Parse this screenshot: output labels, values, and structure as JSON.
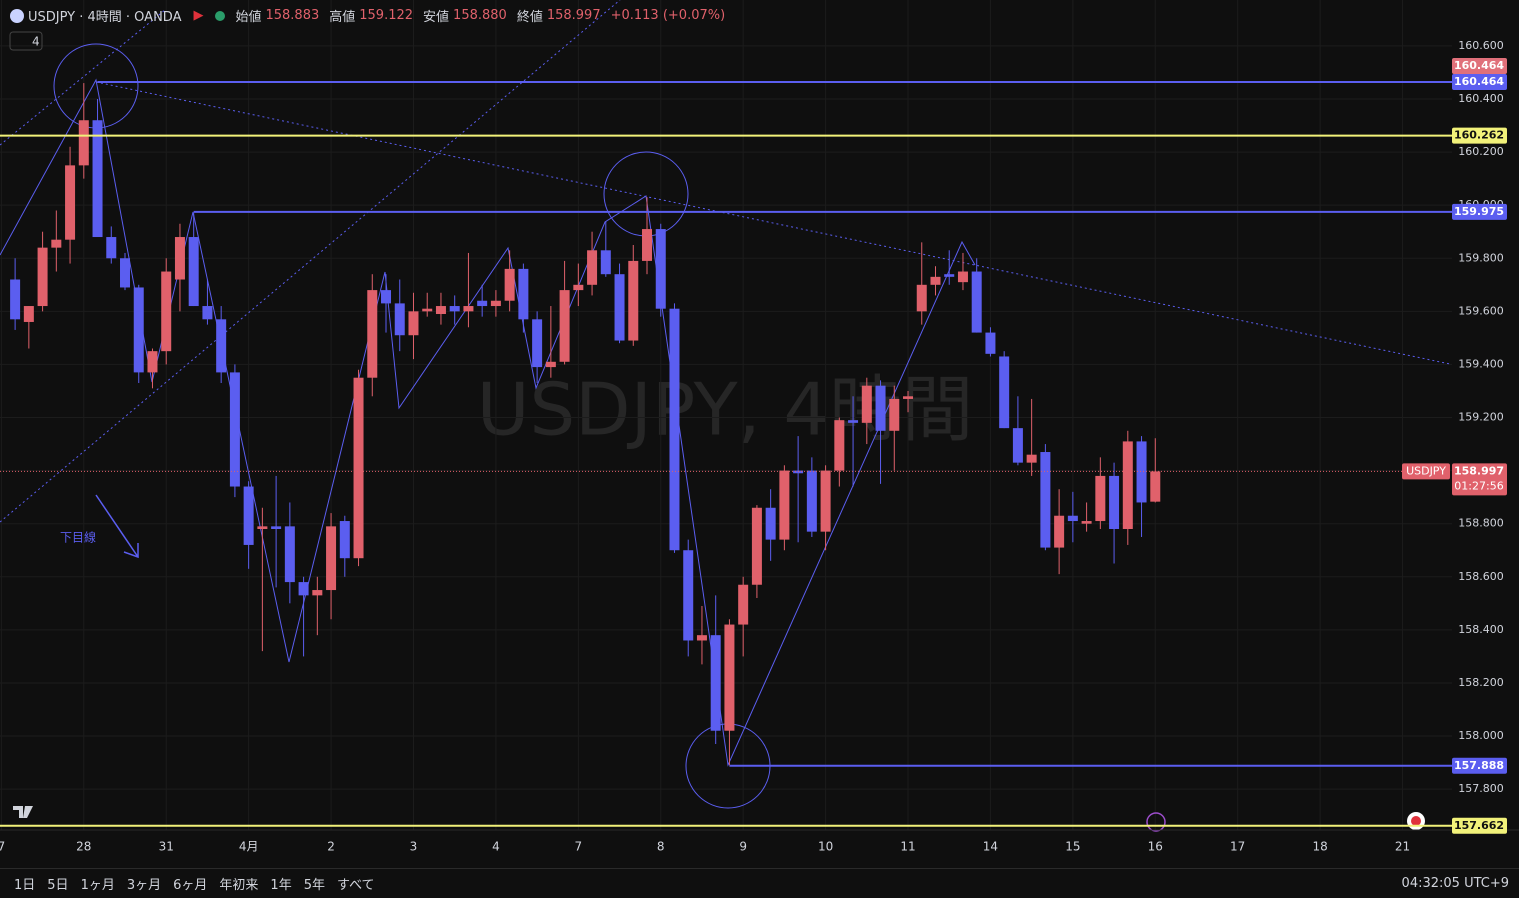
{
  "header": {
    "symbol": "USDJPY · 4時間 · OANDA",
    "open_label": "始値",
    "open": "158.883",
    "high_label": "高値",
    "high": "159.122",
    "low_label": "安値",
    "low": "158.880",
    "close_label": "終値",
    "close": "158.997",
    "change": "+0.113 (+0.07%)",
    "indicator_count": "4"
  },
  "toolbar": {
    "ranges": [
      "1日",
      "5日",
      "1ヶ月",
      "3ヶ月",
      "6ヶ月",
      "年初来",
      "1年",
      "5年",
      "すべて"
    ],
    "clock": "04:32:05 UTC+9"
  },
  "chart_data": {
    "type": "candlestick",
    "title": "USDJPY, 4時間",
    "annotation": "下目線",
    "up_color": "#e0616b",
    "down_color": "#5b5ef0",
    "candles": [
      [
        159.72,
        159.8,
        159.53,
        159.57
      ],
      [
        159.56,
        159.62,
        159.46,
        159.62
      ],
      [
        159.62,
        159.9,
        159.6,
        159.84
      ],
      [
        159.84,
        159.98,
        159.75,
        159.87
      ],
      [
        159.87,
        160.22,
        159.78,
        160.15
      ],
      [
        160.15,
        160.46,
        160.1,
        160.32
      ],
      [
        160.32,
        160.4,
        159.88,
        159.88
      ],
      [
        159.88,
        159.92,
        159.78,
        159.8
      ],
      [
        159.8,
        159.82,
        159.68,
        159.69
      ],
      [
        159.69,
        159.7,
        159.33,
        159.37
      ],
      [
        159.37,
        159.46,
        159.31,
        159.45
      ],
      [
        159.45,
        159.8,
        159.4,
        159.75
      ],
      [
        159.72,
        159.93,
        159.6,
        159.88
      ],
      [
        159.88,
        159.97,
        159.62,
        159.62
      ],
      [
        159.62,
        159.72,
        159.55,
        159.57
      ],
      [
        159.57,
        159.62,
        159.33,
        159.37
      ],
      [
        159.37,
        159.4,
        158.9,
        158.94
      ],
      [
        158.94,
        158.96,
        158.63,
        158.72
      ],
      [
        158.78,
        158.86,
        158.32,
        158.79
      ],
      [
        158.79,
        158.98,
        158.56,
        158.78
      ],
      [
        158.79,
        158.88,
        158.5,
        158.58
      ],
      [
        158.58,
        158.6,
        158.3,
        158.53
      ],
      [
        158.53,
        158.6,
        158.38,
        158.55
      ],
      [
        158.55,
        158.84,
        158.44,
        158.79
      ],
      [
        158.81,
        158.83,
        158.6,
        158.67
      ],
      [
        158.67,
        159.38,
        158.64,
        159.35
      ],
      [
        159.35,
        159.74,
        159.28,
        159.68
      ],
      [
        159.68,
        159.74,
        159.52,
        159.63
      ],
      [
        159.63,
        159.72,
        159.45,
        159.51
      ],
      [
        159.51,
        159.67,
        159.42,
        159.6
      ],
      [
        159.6,
        159.67,
        159.58,
        159.61
      ],
      [
        159.59,
        159.67,
        159.55,
        159.62
      ],
      [
        159.62,
        159.66,
        159.55,
        159.6
      ],
      [
        159.6,
        159.82,
        159.54,
        159.62
      ],
      [
        159.64,
        159.7,
        159.58,
        159.62
      ],
      [
        159.62,
        159.68,
        159.58,
        159.64
      ],
      [
        159.64,
        159.83,
        159.6,
        159.76
      ],
      [
        159.76,
        159.78,
        159.52,
        159.57
      ],
      [
        159.57,
        159.6,
        159.33,
        159.39
      ],
      [
        159.39,
        159.62,
        159.35,
        159.41
      ],
      [
        159.41,
        159.79,
        159.4,
        159.68
      ],
      [
        159.68,
        159.78,
        159.62,
        159.7
      ],
      [
        159.7,
        159.9,
        159.66,
        159.83
      ],
      [
        159.83,
        159.94,
        159.73,
        159.74
      ],
      [
        159.74,
        159.78,
        159.48,
        159.49
      ],
      [
        159.49,
        159.85,
        159.47,
        159.79
      ],
      [
        159.79,
        160.03,
        159.74,
        159.91
      ],
      [
        159.91,
        159.93,
        159.58,
        159.61
      ],
      [
        159.61,
        159.63,
        158.69,
        158.7
      ],
      [
        158.7,
        158.74,
        158.3,
        158.36
      ],
      [
        158.36,
        158.49,
        158.27,
        158.38
      ],
      [
        158.38,
        158.53,
        157.97,
        158.02
      ],
      [
        158.02,
        158.44,
        157.89,
        158.42
      ],
      [
        158.42,
        158.6,
        158.3,
        158.57
      ],
      [
        158.57,
        158.87,
        158.52,
        158.86
      ],
      [
        158.86,
        158.93,
        158.66,
        158.74
      ],
      [
        158.74,
        159.02,
        158.7,
        159.0
      ],
      [
        159.0,
        159.13,
        158.73,
        158.99
      ],
      [
        159.0,
        159.05,
        158.75,
        158.77
      ],
      [
        158.77,
        159.02,
        158.7,
        159.0
      ],
      [
        159.0,
        159.2,
        158.94,
        159.19
      ],
      [
        159.19,
        159.28,
        158.94,
        159.18
      ],
      [
        159.18,
        159.35,
        159.1,
        159.32
      ],
      [
        159.32,
        159.34,
        158.95,
        159.15
      ],
      [
        159.15,
        159.32,
        159.0,
        159.27
      ],
      [
        159.27,
        159.3,
        159.22,
        159.28
      ],
      [
        159.6,
        159.86,
        159.55,
        159.7
      ],
      [
        159.7,
        159.77,
        159.66,
        159.73
      ],
      [
        159.74,
        159.83,
        159.7,
        159.73
      ],
      [
        159.71,
        159.82,
        159.68,
        159.75
      ],
      [
        159.75,
        159.8,
        159.52,
        159.52
      ],
      [
        159.52,
        159.54,
        159.43,
        159.44
      ],
      [
        159.43,
        159.45,
        159.16,
        159.16
      ],
      [
        159.16,
        159.28,
        159.02,
        159.03
      ],
      [
        159.03,
        159.27,
        158.98,
        159.06
      ],
      [
        159.07,
        159.1,
        158.7,
        158.71
      ],
      [
        158.71,
        158.93,
        158.61,
        158.83
      ],
      [
        158.83,
        158.92,
        158.73,
        158.81
      ],
      [
        158.8,
        158.88,
        158.77,
        158.81
      ],
      [
        158.81,
        159.05,
        158.78,
        158.98
      ],
      [
        158.98,
        159.03,
        158.65,
        158.78
      ],
      [
        158.78,
        159.15,
        158.72,
        159.11
      ],
      [
        159.11,
        159.13,
        158.75,
        158.88
      ],
      [
        158.883,
        159.122,
        158.88,
        158.997
      ]
    ],
    "xlim": [
      -1.1,
      104.6
    ],
    "xticks": [
      {
        "value": -1,
        "label": "7"
      },
      {
        "value": 5,
        "label": "28"
      },
      {
        "value": 11,
        "label": "31"
      },
      {
        "value": 17,
        "label": "4月"
      },
      {
        "value": 23,
        "label": "2"
      },
      {
        "value": 29,
        "label": "3"
      },
      {
        "value": 35,
        "label": "4"
      },
      {
        "value": 41,
        "label": "7"
      },
      {
        "value": 47,
        "label": "8"
      },
      {
        "value": 53,
        "label": "9"
      },
      {
        "value": 59,
        "label": "10"
      },
      {
        "value": 65,
        "label": "11"
      },
      {
        "value": 71,
        "label": "14"
      },
      {
        "value": 77,
        "label": "15"
      },
      {
        "value": 83,
        "label": "16"
      },
      {
        "value": 89,
        "label": "17"
      },
      {
        "value": 95,
        "label": "18"
      },
      {
        "value": 101,
        "label": "21"
      }
    ],
    "ylim": [
      157.646,
      160.773
    ],
    "yticks": [
      {
        "value": 157.8,
        "label": "157.800"
      },
      {
        "value": 158,
        "label": "158.000"
      },
      {
        "value": 158.2,
        "label": "158.200"
      },
      {
        "value": 158.4,
        "label": "158.400"
      },
      {
        "value": 158.6,
        "label": "158.600"
      },
      {
        "value": 158.8,
        "label": "158.800"
      },
      {
        "value": 159,
        "label": "159.000"
      },
      {
        "value": 159.2,
        "label": "159.200"
      },
      {
        "value": 159.4,
        "label": "159.400"
      },
      {
        "value": 159.6,
        "label": "159.600"
      },
      {
        "value": 159.8,
        "label": "159.800"
      },
      {
        "value": 160,
        "label": "160.000"
      },
      {
        "value": 160.2,
        "label": "160.200"
      },
      {
        "value": 160.4,
        "label": "160.400"
      },
      {
        "value": 160.6,
        "label": "160.600"
      }
    ],
    "grid": true,
    "levels": [
      {
        "value": 160.464,
        "color": "#e0707a",
        "from": 6
      },
      {
        "value": 160.464,
        "color": "#5b5ef0",
        "from": 6
      },
      {
        "value": 160.262,
        "color": "#f2f27a",
        "from": -1.1
      },
      {
        "value": 159.975,
        "color": "#5b5ef0",
        "from": 13
      },
      {
        "value": 157.888,
        "color": "#5b5ef0",
        "from": 52
      },
      {
        "value": 157.662,
        "color": "#f2f27a",
        "from": -1.1
      }
    ],
    "last_price": {
      "name": "USDJPY",
      "value": 158.997,
      "countdown": "01:27:56"
    }
  }
}
